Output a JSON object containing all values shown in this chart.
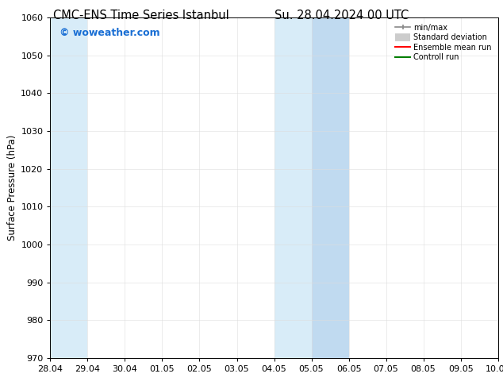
{
  "title_left": "CMC-ENS Time Series Istanbul",
  "title_right": "Su. 28.04.2024 00 UTC",
  "ylabel": "Surface Pressure (hPa)",
  "ylim": [
    970,
    1060
  ],
  "yticks": [
    970,
    980,
    990,
    1000,
    1010,
    1020,
    1030,
    1040,
    1050,
    1060
  ],
  "xtick_labels": [
    "28.04",
    "29.04",
    "30.04",
    "01.05",
    "02.05",
    "03.05",
    "04.05",
    "05.05",
    "06.05",
    "07.05",
    "08.05",
    "09.05",
    "10.05"
  ],
  "shaded_regions": [
    [
      0,
      1,
      "#d8ecf8"
    ],
    [
      6,
      7,
      "#d8ecf8"
    ],
    [
      7,
      8,
      "#c0daf0"
    ]
  ],
  "watermark": "© woweather.com",
  "watermark_color": "#1a6fd4",
  "legend_labels": [
    "min/max",
    "Standard deviation",
    "Ensemble mean run",
    "Controll run"
  ],
  "legend_colors": [
    "#888888",
    "#cccccc",
    "#ff0000",
    "#008000"
  ],
  "legend_lws": [
    1.2,
    7,
    1.5,
    1.5
  ],
  "bg_color": "#ffffff",
  "plot_bg_color": "#ffffff",
  "title_fontsize": 10.5,
  "tick_fontsize": 8,
  "label_fontsize": 8.5,
  "watermark_fontsize": 9
}
